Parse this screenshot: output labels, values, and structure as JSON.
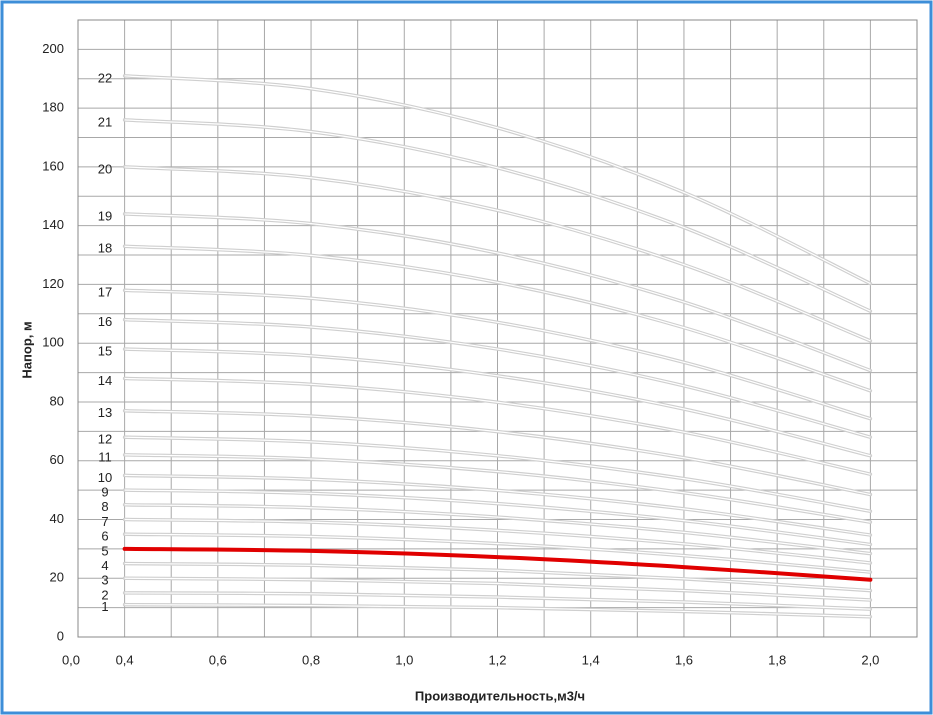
{
  "chart_data": {
    "type": "line",
    "y_label": "Напор, м",
    "x_label": "Производительность,м3/ч",
    "x_origin_label": "0,0",
    "x": [
      0.4,
      0.8,
      1.2,
      1.6,
      2.0
    ],
    "xlim": [
      0.3,
      2.1
    ],
    "ylim": [
      0,
      210
    ],
    "xticks": [
      {
        "value": 0.4,
        "label": "0,4"
      },
      {
        "value": 0.6,
        "label": "0,6"
      },
      {
        "value": 0.8,
        "label": "0,8"
      },
      {
        "value": 1.0,
        "label": "1,0"
      },
      {
        "value": 1.2,
        "label": "1,2"
      },
      {
        "value": 1.4,
        "label": "1,4"
      },
      {
        "value": 1.6,
        "label": "1,6"
      },
      {
        "value": 1.8,
        "label": "1,8"
      },
      {
        "value": 2.0,
        "label": "2,0"
      }
    ],
    "yticks": [
      0,
      20,
      40,
      60,
      80,
      100,
      120,
      140,
      160,
      180,
      200
    ],
    "grid": true,
    "series": [
      {
        "name": "1",
        "color": "#cfcfcf",
        "values": [
          11,
          10.7,
          10.0,
          8.7,
          6.9
        ]
      },
      {
        "name": "2",
        "color": "#cfcfcf",
        "values": [
          15,
          14.7,
          13.6,
          11.9,
          9.5
        ]
      },
      {
        "name": "3",
        "color": "#cfcfcf",
        "values": [
          20,
          19.5,
          18.2,
          15.8,
          12.6
        ]
      },
      {
        "name": "4",
        "color": "#cfcfcf",
        "values": [
          25,
          24.4,
          22.7,
          19.8,
          15.8
        ]
      },
      {
        "name": "5",
        "color": "#e00000",
        "values": [
          30,
          29.3,
          27.2,
          23.8,
          19.5
        ]
      },
      {
        "name": "6",
        "color": "#cfcfcf",
        "values": [
          35,
          34.2,
          31.8,
          27.7,
          22.1
        ]
      },
      {
        "name": "7",
        "color": "#cfcfcf",
        "values": [
          40,
          39.1,
          36.3,
          31.7,
          25.2
        ]
      },
      {
        "name": "8",
        "color": "#cfcfcf",
        "values": [
          45,
          44,
          40.8,
          35.6,
          28.4
        ]
      },
      {
        "name": "9",
        "color": "#cfcfcf",
        "values": [
          50,
          48.9,
          45.4,
          39.6,
          31.5
        ]
      },
      {
        "name": "10",
        "color": "#cfcfcf",
        "values": [
          55,
          53.7,
          49.9,
          43.6,
          34.7
        ]
      },
      {
        "name": "11",
        "color": "#cfcfcf",
        "values": [
          62,
          60.6,
          56.3,
          49.1,
          39.1
        ]
      },
      {
        "name": "12",
        "color": "#cfcfcf",
        "values": [
          68,
          66.4,
          61.7,
          53.9,
          42.8
        ]
      },
      {
        "name": "13",
        "color": "#cfcfcf",
        "values": [
          77,
          75.2,
          69.9,
          61,
          48.5
        ]
      },
      {
        "name": "14",
        "color": "#cfcfcf",
        "values": [
          88,
          86,
          79.9,
          69.7,
          55.4
        ]
      },
      {
        "name": "15",
        "color": "#cfcfcf",
        "values": [
          98,
          95.7,
          88.9,
          77.6,
          61.7
        ]
      },
      {
        "name": "16",
        "color": "#cfcfcf",
        "values": [
          108,
          105.5,
          98,
          85.5,
          68
        ]
      },
      {
        "name": "17",
        "color": "#cfcfcf",
        "values": [
          118,
          115.3,
          107.1,
          93.5,
          74.3
        ]
      },
      {
        "name": "18",
        "color": "#cfcfcf",
        "values": [
          133,
          129.9,
          120.7,
          105.3,
          83.8
        ]
      },
      {
        "name": "19",
        "color": "#cfcfcf",
        "values": [
          144,
          140.7,
          130.7,
          114,
          90.7
        ]
      },
      {
        "name": "20",
        "color": "#cfcfcf",
        "values": [
          160,
          156.3,
          145.2,
          126.7,
          100.8
        ]
      },
      {
        "name": "21",
        "color": "#cfcfcf",
        "values": [
          176,
          172,
          159.7,
          139.4,
          110.9
        ]
      },
      {
        "name": "22",
        "color": "#cfcfcf",
        "values": [
          191,
          186.6,
          173.3,
          151.3,
          120.3
        ]
      }
    ]
  }
}
